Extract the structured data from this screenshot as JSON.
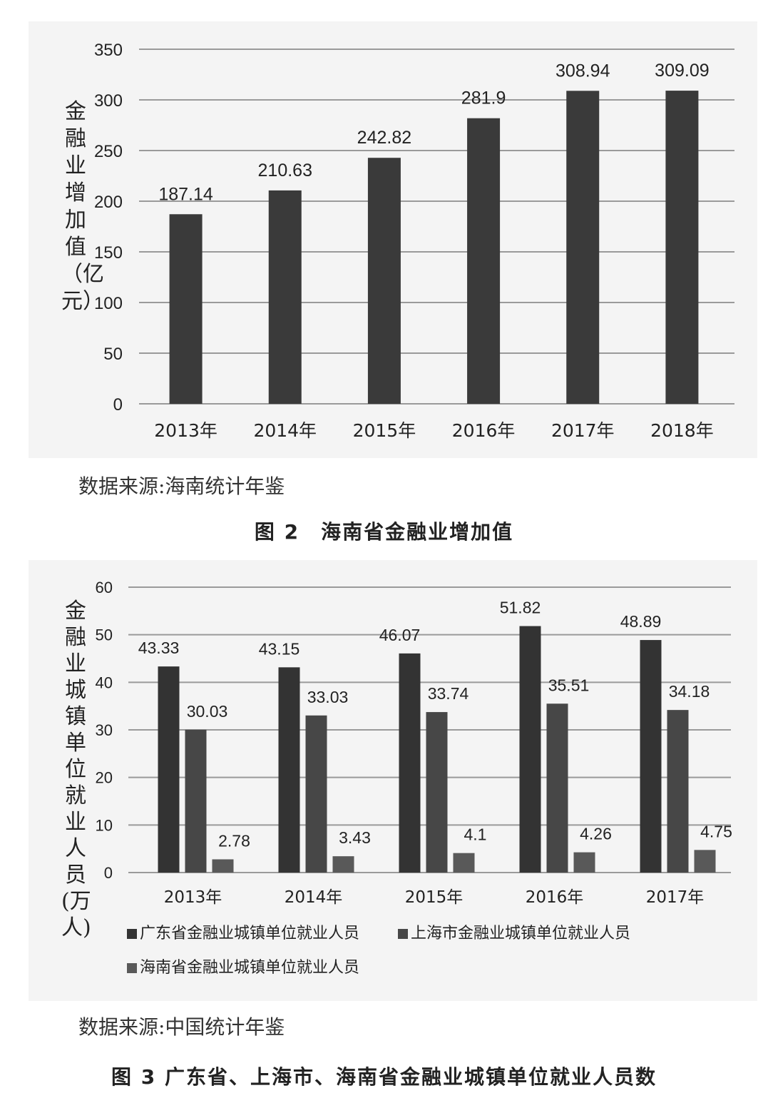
{
  "figure2": {
    "source": "数据来源:海南统计年鉴",
    "caption": "图 2　海南省金融业增加值"
  },
  "figure3": {
    "source": "数据来源:中国统计年鉴",
    "caption": "图 3 广东省、上海市、海南省金融业城镇单位就业人员数"
  },
  "chart_data": [
    {
      "type": "bar",
      "title": "",
      "xlabel": "",
      "ylabel": "金融业增加值（亿元）",
      "categories": [
        "2013年",
        "2014年",
        "2015年",
        "2016年",
        "2017年",
        "2018年"
      ],
      "values": [
        187.14,
        210.63,
        242.82,
        281.9,
        308.94,
        309.09
      ],
      "value_labels": [
        "187.14",
        "210.63",
        "242.82",
        "281.9",
        "308.94",
        "309.09"
      ],
      "ylim": [
        0,
        350
      ],
      "yticks": [
        0,
        50,
        100,
        150,
        200,
        250,
        300,
        350
      ],
      "grid": true,
      "colors": [
        "#3a3a3a"
      ]
    },
    {
      "type": "bar",
      "title": "",
      "xlabel": "",
      "ylabel": "金融业城镇单位就业人员(万人)",
      "categories": [
        "2013年",
        "2014年",
        "2015年",
        "2016年",
        "2017年"
      ],
      "series": [
        {
          "name": "广东省金融业城镇单位就业人员",
          "values": [
            43.33,
            43.15,
            46.07,
            51.82,
            48.89
          ]
        },
        {
          "name": "上海市金融业城镇单位就业人员",
          "values": [
            30.03,
            33.03,
            33.74,
            35.51,
            34.18
          ]
        },
        {
          "name": "海南省金融业城镇单位就业人员",
          "values": [
            2.78,
            3.43,
            4.1,
            4.26,
            4.75
          ]
        }
      ],
      "ylim": [
        0,
        60
      ],
      "yticks": [
        0,
        10,
        20,
        30,
        40,
        50,
        60
      ],
      "grid": true,
      "legend": "bottom",
      "colors": [
        "#333333",
        "#474747",
        "#595959"
      ]
    }
  ]
}
